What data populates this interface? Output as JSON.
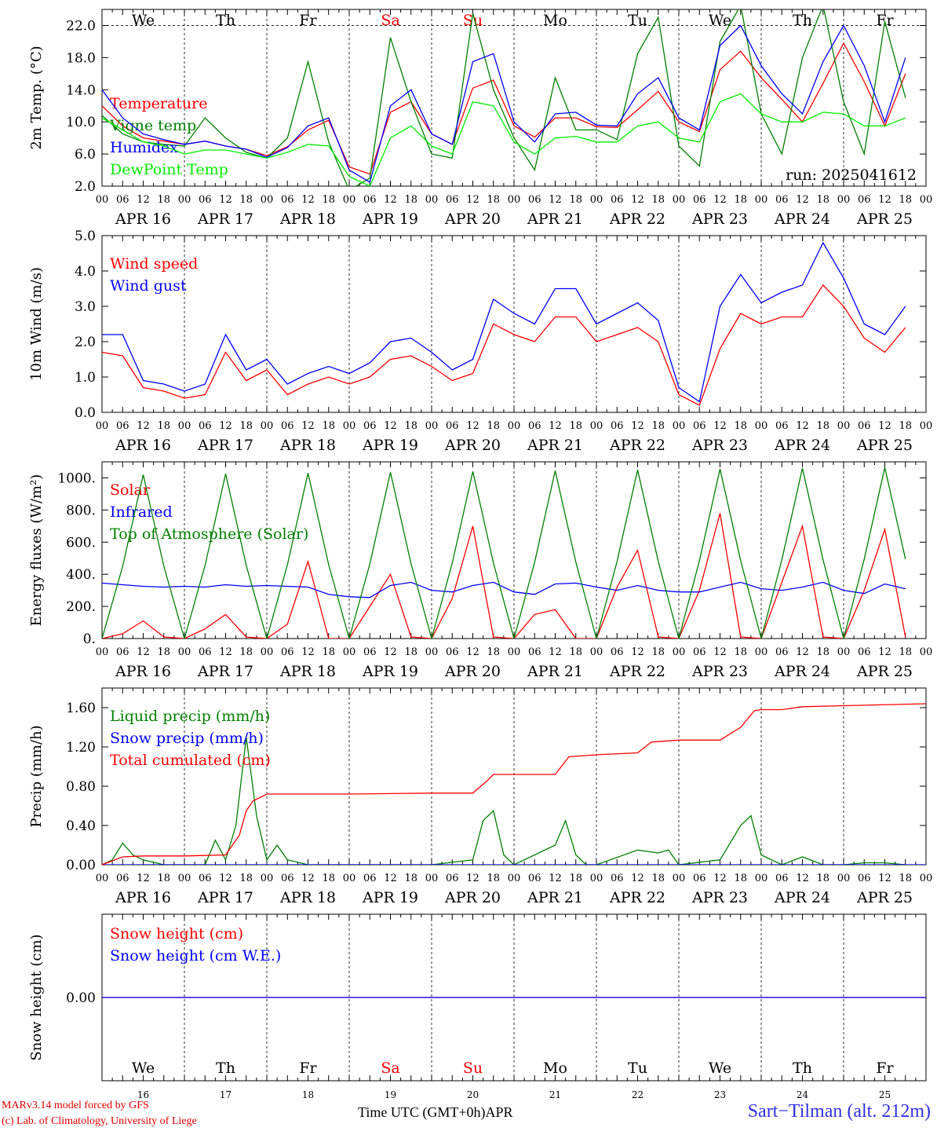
{
  "chart_data": [
    {
      "type": "line",
      "ylabel": "2m Temp. (°C)",
      "ylim": [
        2.0,
        24.0
      ],
      "yticks": [
        2.0,
        6.0,
        10.0,
        14.0,
        18.0,
        22.0
      ],
      "ytick_labels": [
        "2.0",
        "6.0",
        "10.0",
        "14.0",
        "18.0",
        "22.0"
      ],
      "dashed_y": 22.0,
      "annotation": "run: 2025041612",
      "legend_position": "left",
      "series": [
        {
          "name": "Temperature",
          "color": "#ff0000",
          "x_hours": [
            0,
            6,
            12,
            18,
            24,
            30,
            36,
            42,
            48,
            54,
            60,
            66,
            72,
            78,
            84,
            90,
            96,
            102,
            108,
            114,
            120,
            126,
            132,
            138,
            144,
            150,
            156,
            162,
            168,
            174,
            180,
            186,
            192,
            198,
            204,
            210,
            216,
            222,
            228,
            234
          ],
          "values": [
            12.0,
            9.5,
            8.0,
            7.6,
            7.2,
            7.6,
            7.0,
            6.6,
            5.8,
            6.9,
            9.0,
            10.2,
            4.4,
            3.5,
            11.2,
            12.5,
            8.5,
            7.2,
            14.2,
            15.2,
            9.5,
            8.1,
            10.5,
            10.5,
            9.4,
            9.3,
            11.5,
            13.8,
            10.0,
            8.8,
            16.5,
            18.8,
            15.5,
            12.8,
            10.0,
            14.8,
            19.8,
            15.0,
            9.5,
            16.0
          ]
        },
        {
          "name": "Vigne temp",
          "color": "#008000",
          "x_hours": [
            0,
            6,
            12,
            18,
            24,
            30,
            36,
            42,
            48,
            54,
            60,
            66,
            72,
            78,
            84,
            90,
            96,
            102,
            108,
            114,
            120,
            126,
            132,
            138,
            144,
            150,
            156,
            162,
            168,
            174,
            180,
            186,
            192,
            198,
            204,
            210,
            216,
            222,
            228,
            234
          ],
          "values": [
            10.8,
            8.5,
            7.5,
            7.2,
            7.0,
            10.5,
            8.0,
            6.2,
            5.5,
            8.0,
            17.5,
            7.5,
            1.5,
            3.0,
            20.5,
            12.5,
            6.0,
            5.5,
            23.5,
            14.0,
            8.0,
            4.0,
            15.5,
            9.0,
            9.0,
            7.8,
            18.5,
            23.0,
            7.0,
            4.5,
            20.0,
            24.5,
            11.0,
            6.0,
            18.0,
            24.5,
            12.5,
            6.0,
            22.5,
            13.0
          ]
        },
        {
          "name": "Humidex",
          "color": "#0000ff",
          "x_hours": [
            0,
            6,
            12,
            18,
            24,
            30,
            36,
            42,
            48,
            54,
            60,
            66,
            72,
            78,
            84,
            90,
            96,
            102,
            108,
            114,
            120,
            126,
            132,
            138,
            144,
            150,
            156,
            162,
            168,
            174,
            180,
            186,
            192,
            198,
            204,
            210,
            216,
            222,
            228,
            234
          ],
          "values": [
            14.0,
            10.5,
            8.5,
            7.8,
            7.2,
            7.6,
            7.0,
            6.6,
            5.6,
            6.8,
            9.5,
            10.5,
            4.0,
            2.5,
            12.0,
            14.0,
            8.5,
            7.2,
            17.5,
            18.5,
            10.0,
            7.5,
            11.0,
            11.2,
            9.6,
            9.5,
            13.5,
            15.5,
            10.5,
            9.0,
            19.5,
            22.0,
            17.0,
            13.5,
            11.0,
            17.5,
            22.0,
            17.0,
            10.0,
            18.0
          ]
        },
        {
          "name": "DewPoint Temp",
          "color": "#00ee00",
          "x_hours": [
            0,
            6,
            12,
            18,
            24,
            30,
            36,
            42,
            48,
            54,
            60,
            66,
            72,
            78,
            84,
            90,
            96,
            102,
            108,
            114,
            120,
            126,
            132,
            138,
            144,
            150,
            156,
            162,
            168,
            174,
            180,
            186,
            192,
            198,
            204,
            210,
            216,
            222,
            228,
            234
          ],
          "values": [
            10.5,
            9.0,
            7.5,
            7.0,
            6.0,
            6.5,
            6.5,
            6.0,
            5.5,
            6.2,
            7.2,
            7.0,
            3.2,
            2.0,
            8.0,
            9.5,
            7.0,
            6.0,
            12.5,
            12.0,
            7.5,
            6.0,
            8.0,
            8.2,
            7.5,
            7.5,
            9.5,
            10.0,
            8.0,
            7.5,
            12.5,
            13.5,
            11.0,
            10.0,
            10.0,
            11.2,
            11.0,
            9.5,
            9.5,
            10.5
          ]
        }
      ]
    },
    {
      "type": "line",
      "ylabel": "10m Wind (m/s)",
      "ylim": [
        0.0,
        5.0
      ],
      "yticks": [
        0.0,
        1.0,
        2.0,
        3.0,
        4.0,
        5.0
      ],
      "ytick_labels": [
        "0.0",
        "1.0",
        "2.0",
        "3.0",
        "4.0",
        "5.0"
      ],
      "dashed_y": 5.0,
      "legend_position": "left",
      "series": [
        {
          "name": "Wind speed",
          "color": "#ff0000",
          "x_hours": [
            0,
            6,
            12,
            18,
            24,
            30,
            36,
            42,
            48,
            54,
            60,
            66,
            72,
            78,
            84,
            90,
            96,
            102,
            108,
            114,
            120,
            126,
            132,
            138,
            144,
            150,
            156,
            162,
            168,
            174,
            180,
            186,
            192,
            198,
            204,
            210,
            216,
            222,
            228,
            234
          ],
          "values": [
            1.7,
            1.6,
            0.7,
            0.6,
            0.4,
            0.5,
            1.7,
            0.9,
            1.2,
            0.5,
            0.8,
            1.0,
            0.8,
            1.0,
            1.5,
            1.6,
            1.3,
            0.9,
            1.1,
            2.5,
            2.2,
            2.0,
            2.7,
            2.7,
            2.0,
            2.2,
            2.4,
            2.0,
            0.5,
            0.2,
            1.8,
            2.8,
            2.5,
            2.7,
            2.7,
            3.6,
            3.0,
            2.1,
            1.7,
            2.4
          ]
        },
        {
          "name": "Wind gust",
          "color": "#0000ff",
          "x_hours": [
            0,
            6,
            12,
            18,
            24,
            30,
            36,
            42,
            48,
            54,
            60,
            66,
            72,
            78,
            84,
            90,
            96,
            102,
            108,
            114,
            120,
            126,
            132,
            138,
            144,
            150,
            156,
            162,
            168,
            174,
            180,
            186,
            192,
            198,
            204,
            210,
            216,
            222,
            228,
            234
          ],
          "values": [
            2.2,
            2.2,
            0.9,
            0.8,
            0.6,
            0.8,
            2.2,
            1.2,
            1.5,
            0.8,
            1.1,
            1.3,
            1.1,
            1.4,
            2.0,
            2.1,
            1.7,
            1.2,
            1.5,
            3.2,
            2.8,
            2.5,
            3.5,
            3.5,
            2.5,
            2.8,
            3.1,
            2.6,
            0.7,
            0.3,
            3.0,
            3.9,
            3.1,
            3.4,
            3.6,
            4.8,
            3.8,
            2.5,
            2.2,
            3.0
          ]
        }
      ]
    },
    {
      "type": "line",
      "ylabel": "Energy fluxes (W/m²)",
      "ylim": [
        0,
        1100
      ],
      "yticks": [
        0,
        200,
        400,
        600,
        800,
        1000
      ],
      "ytick_labels": [
        "0.",
        "200.",
        "400.",
        "600.",
        "800.",
        "1000."
      ],
      "legend_position": "left",
      "series": [
        {
          "name": "Solar",
          "color": "#ff0000",
          "x_hours": [
            0,
            6,
            12,
            18,
            24,
            30,
            36,
            42,
            48,
            54,
            60,
            66,
            72,
            78,
            84,
            90,
            96,
            102,
            108,
            114,
            120,
            126,
            132,
            138,
            144,
            150,
            156,
            162,
            168,
            174,
            180,
            186,
            192,
            198,
            204,
            210,
            216,
            222,
            228,
            234
          ],
          "values": [
            0,
            30,
            110,
            10,
            0,
            60,
            150,
            10,
            0,
            90,
            480,
            0,
            0,
            200,
            400,
            10,
            0,
            250,
            700,
            10,
            0,
            150,
            180,
            0,
            0,
            320,
            550,
            10,
            0,
            300,
            780,
            10,
            0,
            350,
            700,
            10,
            0,
            300,
            680,
            10
          ]
        },
        {
          "name": "Infrared",
          "color": "#0000ff",
          "x_hours": [
            0,
            6,
            12,
            18,
            24,
            30,
            36,
            42,
            48,
            54,
            60,
            66,
            72,
            78,
            84,
            90,
            96,
            102,
            108,
            114,
            120,
            126,
            132,
            138,
            144,
            150,
            156,
            162,
            168,
            174,
            180,
            186,
            192,
            198,
            204,
            210,
            216,
            222,
            228,
            234
          ],
          "values": [
            345,
            335,
            325,
            320,
            325,
            320,
            335,
            325,
            330,
            325,
            320,
            275,
            260,
            255,
            330,
            350,
            300,
            290,
            330,
            350,
            290,
            275,
            340,
            345,
            320,
            300,
            330,
            300,
            290,
            290,
            320,
            350,
            310,
            300,
            320,
            350,
            300,
            280,
            340,
            310
          ]
        },
        {
          "name": "Top of Atmosphere (Solar)",
          "color": "#008000",
          "x_hours": [
            0,
            6,
            12,
            18,
            24,
            30,
            36,
            42,
            48,
            54,
            60,
            66,
            72,
            78,
            84,
            90,
            96,
            102,
            108,
            114,
            120,
            126,
            132,
            138,
            144,
            150,
            156,
            162,
            168,
            174,
            180,
            186,
            192,
            198,
            204,
            210,
            216,
            222,
            228,
            234
          ],
          "values": [
            0,
            450,
            1020,
            450,
            0,
            455,
            1025,
            455,
            0,
            460,
            1030,
            460,
            0,
            465,
            1035,
            465,
            0,
            470,
            1040,
            470,
            0,
            475,
            1045,
            475,
            0,
            480,
            1050,
            480,
            0,
            485,
            1055,
            485,
            0,
            490,
            1060,
            490,
            0,
            495,
            1065,
            495
          ]
        }
      ]
    },
    {
      "type": "line",
      "ylabel": "Precip (mm/h)",
      "ylim": [
        0.0,
        1.8
      ],
      "yticks": [
        0.0,
        0.4,
        0.8,
        1.2,
        1.6
      ],
      "ytick_labels": [
        "0.00",
        "0.40",
        "0.80",
        "1.20",
        "1.60"
      ],
      "legend_position": "left",
      "series": [
        {
          "name": "Liquid precip (mm/h)",
          "color": "#008000",
          "x_hours": [
            0,
            3,
            6,
            9,
            12,
            18,
            24,
            30,
            33,
            36,
            39,
            42,
            45,
            48,
            51,
            54,
            60,
            72,
            84,
            96,
            108,
            111,
            114,
            117,
            120,
            132,
            135,
            138,
            141,
            144,
            156,
            162,
            165,
            168,
            180,
            186,
            189,
            192,
            198,
            204,
            210,
            216,
            222,
            228,
            234
          ],
          "values": [
            0,
            0.05,
            0.22,
            0.1,
            0.05,
            0,
            0,
            0,
            0.25,
            0.05,
            0.4,
            1.3,
            0.5,
            0.05,
            0.2,
            0.05,
            0,
            0,
            0,
            0,
            0.05,
            0.45,
            0.55,
            0.1,
            0,
            0.2,
            0.45,
            0.1,
            0,
            0,
            0.15,
            0.12,
            0.15,
            0,
            0.05,
            0.4,
            0.5,
            0.1,
            0,
            0.08,
            0,
            0,
            0.02,
            0.02,
            0
          ]
        },
        {
          "name": "Snow precip (mm/h)",
          "color": "#0000ff",
          "x_hours": [
            0,
            240
          ],
          "values": [
            0,
            0
          ]
        },
        {
          "name": "Total cumulated (cm)",
          "color": "#ff0000",
          "x_hours": [
            0,
            6,
            12,
            24,
            36,
            40,
            42,
            44,
            48,
            56,
            72,
            96,
            108,
            112,
            114,
            120,
            132,
            136,
            144,
            156,
            160,
            168,
            180,
            186,
            190,
            192,
            198,
            204,
            216,
            240
          ],
          "values": [
            0,
            0.08,
            0.09,
            0.09,
            0.1,
            0.3,
            0.55,
            0.65,
            0.72,
            0.72,
            0.72,
            0.73,
            0.73,
            0.85,
            0.92,
            0.92,
            0.92,
            1.1,
            1.12,
            1.14,
            1.25,
            1.27,
            1.27,
            1.4,
            1.57,
            1.58,
            1.58,
            1.61,
            1.62,
            1.64
          ]
        }
      ]
    },
    {
      "type": "line",
      "ylabel": "Snow height (cm)",
      "ylim": [
        -1.0,
        1.0
      ],
      "yticks": [
        0.0
      ],
      "ytick_labels": [
        "0.00"
      ],
      "legend_position": "left",
      "series": [
        {
          "name": "Snow height (cm)",
          "color": "#ff0000",
          "x_hours": [
            0,
            240
          ],
          "values": [
            0,
            0
          ]
        },
        {
          "name": "Snow height (cm W.E.)",
          "color": "#0000ff",
          "x_hours": [
            0,
            240
          ],
          "values": [
            0,
            0
          ]
        }
      ]
    }
  ],
  "days": {
    "weekdays": [
      "We",
      "Th",
      "Fr",
      "Sa",
      "Su",
      "Mo",
      "Tu",
      "We",
      "Th",
      "Fr"
    ],
    "weekend_index": [
      3,
      4
    ],
    "dates": [
      "APR 16",
      "APR 17",
      "APR 18",
      "APR 19",
      "APR 20",
      "APR 21",
      "APR 22",
      "APR 23",
      "APR 24",
      "APR 25"
    ],
    "day_numbers": [
      "16",
      "17",
      "18",
      "19",
      "20",
      "21",
      "22",
      "23",
      "24",
      "25"
    ],
    "hour_labels": [
      "00",
      "06",
      "12",
      "18"
    ],
    "last_hour_label": "00"
  },
  "colors": {
    "weekday": "#000000",
    "weekend": "#ff0000"
  },
  "xtitle": "Time UTC (GMT+0h)APR",
  "credit_line1": "MARv3.14 model forced by GFS",
  "credit_line2": "(c) Lab. of Climatology, University of Liege",
  "station": "Sart−Tilman (alt. 212m)"
}
